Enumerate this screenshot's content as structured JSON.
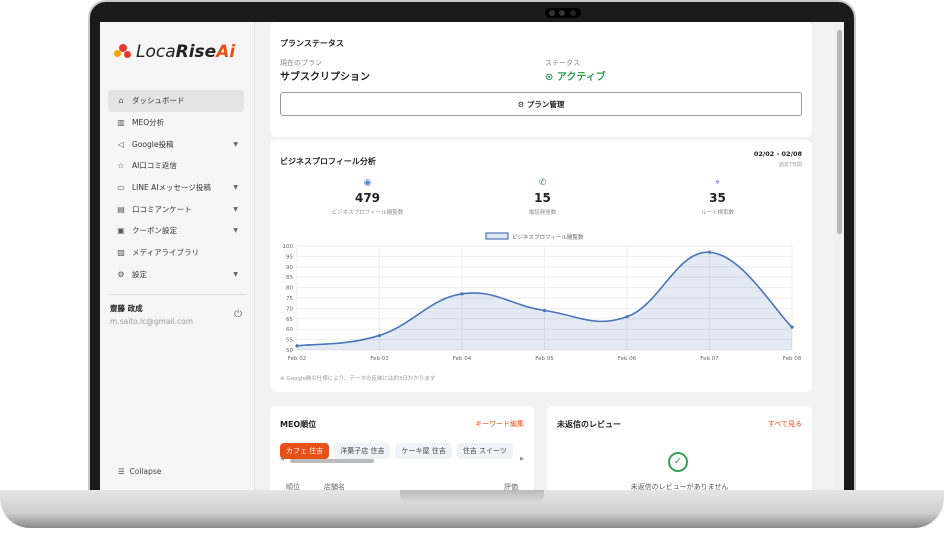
{
  "brand": {
    "name_light": "Loca",
    "name_bold": "Rise",
    "name_ai": "Ai"
  },
  "sidebar": {
    "items": [
      {
        "label": "ダッシュボード",
        "icon": "home-icon",
        "active": true
      },
      {
        "label": "MEO分析",
        "icon": "bar-chart-icon"
      },
      {
        "label": "Google投稿",
        "icon": "megaphone-icon",
        "chevron": true
      },
      {
        "label": "AI口コミ返信",
        "icon": "star-icon"
      },
      {
        "label": "LINE AIメッセージ投稿",
        "icon": "chat-icon",
        "chevron": true
      },
      {
        "label": "口コミアンケート",
        "icon": "survey-icon",
        "chevron": true
      },
      {
        "label": "クーポン設定",
        "icon": "coupon-icon",
        "chevron": true
      },
      {
        "label": "メディアライブラリ",
        "icon": "image-icon"
      },
      {
        "label": "設定",
        "icon": "gear-icon",
        "chevron": true
      }
    ],
    "user": {
      "name": "齋藤 政成",
      "email": "m.saito.lc@gmail.com"
    },
    "collapse": "Collapse"
  },
  "plan": {
    "title": "プランステータス",
    "current_label": "現在のプラン",
    "current_value": "サブスクリプション",
    "status_label": "ステータス",
    "status_value": "アクティブ",
    "button": "プラン管理",
    "status_color": "#2e9e4f"
  },
  "analysis": {
    "title": "ビジネスプロフィール分析",
    "range": "02/02 - 02/08",
    "range_sub": "過去7日間",
    "stats": [
      {
        "value": "479",
        "label": "ビジネスプロフィール閲覧数",
        "icon": "eye-icon",
        "color": "#5b7fd1"
      },
      {
        "value": "15",
        "label": "電話発信数",
        "icon": "phone-icon",
        "color": "#3aa157"
      },
      {
        "value": "35",
        "label": "ルート検索数",
        "icon": "map-pin-icon",
        "color": "#9a6fc4"
      }
    ],
    "note": "※ Google側の仕様により、データの反映には約3日かかります"
  },
  "chart_data": {
    "type": "area",
    "categories": [
      "Feb 02",
      "Feb 03",
      "Feb 04",
      "Feb 05",
      "Feb 06",
      "Feb 07",
      "Feb 08"
    ],
    "series": [
      {
        "name": "ビジネスプロフィール閲覧数",
        "values": [
          52,
          57,
          77,
          69,
          66,
          97,
          61
        ]
      }
    ],
    "ylim": [
      50,
      100
    ],
    "yticks": [
      50,
      55,
      60,
      65,
      70,
      75,
      80,
      85,
      90,
      95,
      100
    ],
    "grid": true,
    "legend": "top",
    "color": "#4a74b8"
  },
  "meo": {
    "title": "MEO順位",
    "link": "キーワード編集",
    "chips": [
      "カフェ 住吉",
      "洋菓子店 住吉",
      "ケーキ屋 住吉",
      "住吉 スイーツ"
    ],
    "columns": [
      "順位",
      "店舗名",
      "評価"
    ]
  },
  "reviews": {
    "title": "未返信のレビュー",
    "link": "すべて見る",
    "empty": "未返信のレビューがありません"
  }
}
